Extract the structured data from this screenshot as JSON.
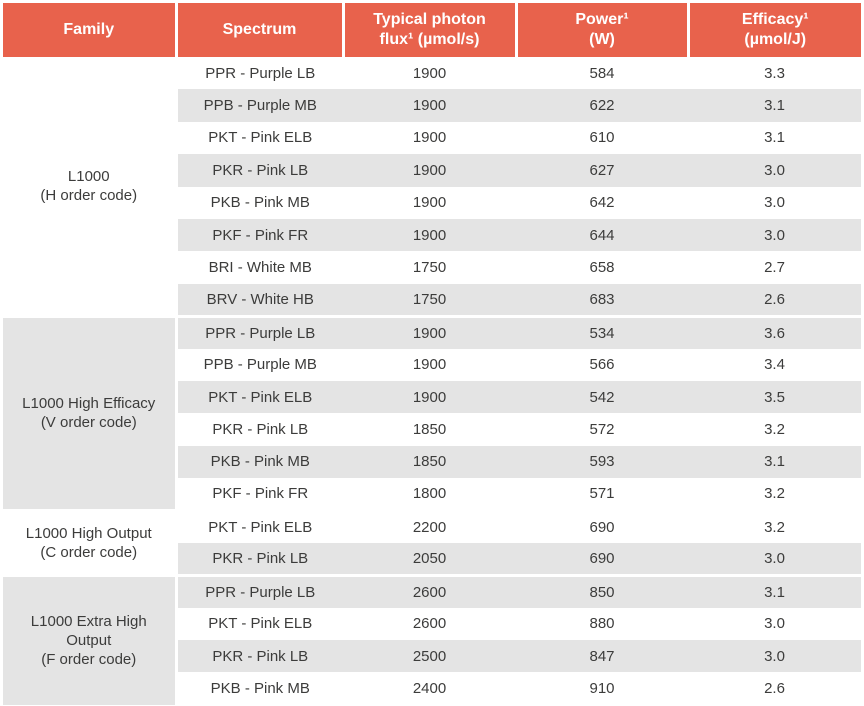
{
  "colors": {
    "header_bg": "#E8624C",
    "header_text": "#FFFFFF",
    "row_gray": "#E4E4E4",
    "row_white": "#FFFFFF",
    "text": "#3C3C3B"
  },
  "header": {
    "columns": [
      {
        "id": "family",
        "lines": [
          "Family"
        ]
      },
      {
        "id": "spectrum",
        "lines": [
          "Spectrum"
        ]
      },
      {
        "id": "flux",
        "lines": [
          "Typical photon",
          "flux¹ (µmol/s)"
        ]
      },
      {
        "id": "power",
        "lines": [
          "Power¹",
          "(W)"
        ]
      },
      {
        "id": "efficacy",
        "lines": [
          "Efficacy¹",
          "(µmol/J)"
        ]
      }
    ]
  },
  "groups": [
    {
      "family": "L1000",
      "order_code": "(H order code)",
      "rows": [
        {
          "spectrum": "PPR - Purple LB",
          "flux": "1900",
          "power": "584",
          "efficacy": "3.3"
        },
        {
          "spectrum": "PPB - Purple MB",
          "flux": "1900",
          "power": "622",
          "efficacy": "3.1"
        },
        {
          "spectrum": "PKT - Pink ELB",
          "flux": "1900",
          "power": "610",
          "efficacy": "3.1"
        },
        {
          "spectrum": "PKR - Pink LB",
          "flux": "1900",
          "power": "627",
          "efficacy": "3.0"
        },
        {
          "spectrum": "PKB - Pink MB",
          "flux": "1900",
          "power": "642",
          "efficacy": "3.0"
        },
        {
          "spectrum": "PKF - Pink FR",
          "flux": "1900",
          "power": "644",
          "efficacy": "3.0"
        },
        {
          "spectrum": "BRI - White MB",
          "flux": "1750",
          "power": "658",
          "efficacy": "2.7"
        },
        {
          "spectrum": "BRV - White HB",
          "flux": "1750",
          "power": "683",
          "efficacy": "2.6"
        }
      ]
    },
    {
      "family": "L1000 High Efficacy",
      "order_code": "(V order code)",
      "rows": [
        {
          "spectrum": "PPR - Purple LB",
          "flux": "1900",
          "power": "534",
          "efficacy": "3.6"
        },
        {
          "spectrum": "PPB - Purple MB",
          "flux": "1900",
          "power": "566",
          "efficacy": "3.4"
        },
        {
          "spectrum": "PKT - Pink ELB",
          "flux": "1900",
          "power": "542",
          "efficacy": "3.5"
        },
        {
          "spectrum": "PKR - Pink LB",
          "flux": "1850",
          "power": "572",
          "efficacy": "3.2"
        },
        {
          "spectrum": "PKB - Pink MB",
          "flux": "1850",
          "power": "593",
          "efficacy": "3.1"
        },
        {
          "spectrum": "PKF - Pink FR",
          "flux": "1800",
          "power": "571",
          "efficacy": "3.2"
        }
      ]
    },
    {
      "family": "L1000 High Output",
      "order_code": "(C order code)",
      "rows": [
        {
          "spectrum": "PKT - Pink ELB",
          "flux": "2200",
          "power": "690",
          "efficacy": "3.2"
        },
        {
          "spectrum": "PKR - Pink LB",
          "flux": "2050",
          "power": "690",
          "efficacy": "3.0"
        }
      ]
    },
    {
      "family": "L1000 Extra High Output",
      "order_code": "(F order code)",
      "rows": [
        {
          "spectrum": "PPR - Purple LB",
          "flux": "2600",
          "power": "850",
          "efficacy": "3.1"
        },
        {
          "spectrum": "PKT - Pink ELB",
          "flux": "2600",
          "power": "880",
          "efficacy": "3.0"
        },
        {
          "spectrum": "PKR - Pink LB",
          "flux": "2500",
          "power": "847",
          "efficacy": "3.0"
        },
        {
          "spectrum": "PKB - Pink MB",
          "flux": "2400",
          "power": "910",
          "efficacy": "2.6"
        }
      ]
    }
  ]
}
